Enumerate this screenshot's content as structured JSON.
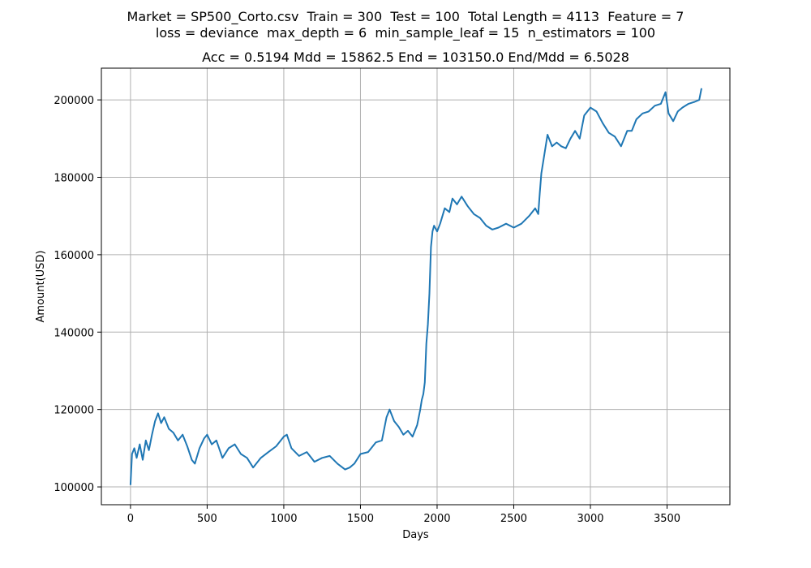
{
  "figure": {
    "suptitle_line1": "Market = SP500_Corto.csv  Train = 300  Test = 100  Total Length = 4113  Feature = 7",
    "suptitle_line2": "loss = deviance  max_depth = 6  min_sample_leaf = 15  n_estimators = 100"
  },
  "chart_data": {
    "type": "line",
    "title": "Acc = 0.5194  Mdd = 15862.5  End = 103150.0  End/Mdd = 6.5028",
    "xlabel": "Days",
    "ylabel": "Amount(USD)",
    "xlim": [
      -190,
      3910
    ],
    "ylim": [
      95400,
      208200
    ],
    "xticks": [
      0,
      500,
      1000,
      1500,
      2000,
      2500,
      3000,
      3500
    ],
    "xtick_labels": [
      "0",
      "500",
      "1000",
      "1500",
      "2000",
      "2500",
      "3000",
      "3500"
    ],
    "yticks": [
      100000,
      120000,
      140000,
      160000,
      180000,
      200000
    ],
    "ytick_labels": [
      "100000",
      "120000",
      "140000",
      "160000",
      "180000",
      "200000"
    ],
    "grid": true,
    "series": [
      {
        "color": "#1f77b4",
        "x": [
          0,
          10,
          25,
          40,
          60,
          80,
          100,
          120,
          140,
          160,
          180,
          200,
          220,
          250,
          280,
          310,
          340,
          370,
          400,
          420,
          450,
          480,
          500,
          530,
          560,
          600,
          640,
          680,
          720,
          760,
          800,
          850,
          900,
          950,
          1000,
          1020,
          1050,
          1100,
          1150,
          1200,
          1250,
          1300,
          1350,
          1400,
          1430,
          1460,
          1500,
          1550,
          1600,
          1640,
          1670,
          1690,
          1720,
          1750,
          1780,
          1810,
          1840,
          1870,
          1890,
          1900,
          1910,
          1920,
          1930,
          1940,
          1950,
          1960,
          1970,
          1980,
          2000,
          2020,
          2050,
          2080,
          2100,
          2130,
          2160,
          2200,
          2240,
          2280,
          2320,
          2360,
          2400,
          2450,
          2500,
          2550,
          2600,
          2640,
          2660,
          2670,
          2680,
          2700,
          2720,
          2750,
          2780,
          2810,
          2840,
          2870,
          2900,
          2930,
          2960,
          3000,
          3040,
          3080,
          3120,
          3160,
          3200,
          3240,
          3270,
          3300,
          3340,
          3380,
          3420,
          3460,
          3490,
          3510,
          3540,
          3570,
          3600,
          3640,
          3680,
          3710,
          3725
        ],
        "values": [
          100500,
          108500,
          110000,
          107500,
          111000,
          107000,
          112000,
          109500,
          113500,
          117000,
          119000,
          116500,
          118000,
          115000,
          114000,
          112000,
          113500,
          110500,
          107000,
          106000,
          110000,
          112500,
          113500,
          111000,
          112000,
          107500,
          110000,
          111000,
          108500,
          107500,
          105000,
          107500,
          109000,
          110500,
          113000,
          113500,
          110000,
          108000,
          109000,
          106500,
          107500,
          108000,
          106000,
          104500,
          105000,
          106000,
          108500,
          109000,
          111500,
          112000,
          118000,
          120000,
          117000,
          115500,
          113500,
          114500,
          113000,
          116000,
          120000,
          122500,
          124000,
          127000,
          137000,
          142000,
          150000,
          162000,
          166000,
          167500,
          166000,
          168000,
          172000,
          171000,
          174500,
          173000,
          175000,
          172500,
          170500,
          169500,
          167500,
          166500,
          167000,
          168000,
          167000,
          168000,
          170000,
          172000,
          170500,
          176000,
          181000,
          186000,
          191000,
          188000,
          189000,
          188000,
          187500,
          190000,
          192000,
          190000,
          196000,
          198000,
          197000,
          194000,
          191500,
          190500,
          188000,
          192000,
          192000,
          195000,
          196500,
          197000,
          198500,
          199000,
          202000,
          196500,
          194500,
          197000,
          198000,
          199000,
          199500,
          200000,
          203000
        ]
      }
    ]
  }
}
